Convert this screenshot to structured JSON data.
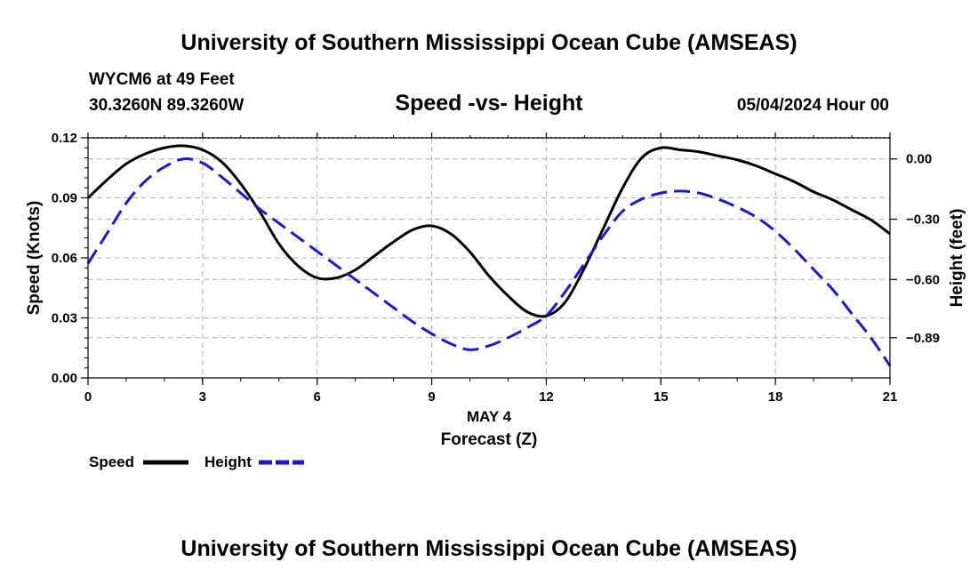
{
  "header": {
    "title": "University of Southern Mississippi Ocean Cube (AMSEAS)",
    "station": "WYCM6 at 49 Feet",
    "coords": "30.3260N  89.3260W",
    "subtitle": "Speed -vs- Height",
    "datetime": "05/04/2024 Hour 00"
  },
  "footer": {
    "title": "University of Southern Mississippi Ocean Cube (AMSEAS)"
  },
  "legend": {
    "speed_label": "Speed",
    "height_label": "Height"
  },
  "colors": {
    "speed": "#000000",
    "height": "#1a1acc",
    "grid": "#b0b0b0"
  },
  "chart_data": {
    "type": "line",
    "title": "Speed -vs- Height",
    "xlabel": "Forecast (Z)",
    "xlabel_date": "MAY 4",
    "ylabel": "Speed (Knots)",
    "y2label": "Height (feet)",
    "xlim": [
      0,
      21
    ],
    "ylim": [
      0,
      0.12
    ],
    "y2lim": [
      -1.09,
      0.105
    ],
    "x_ticks": [
      0,
      3,
      6,
      9,
      12,
      15,
      18,
      21
    ],
    "x_tick_labels": [
      "0",
      "3",
      "6",
      "9",
      "12",
      "15",
      "18",
      "21"
    ],
    "y_ticks": [
      0,
      0.03,
      0.06,
      0.09,
      0.12
    ],
    "y_tick_labels": [
      "0.00",
      "0.03",
      "0.06",
      "0.09",
      "0.12"
    ],
    "y2_ticks": [
      0.0,
      -0.3,
      -0.6,
      -0.89
    ],
    "y2_tick_labels": [
      "0.00",
      "−0.30",
      "−0.60",
      "−0.89"
    ],
    "grid": true,
    "series": [
      {
        "name": "Speed",
        "axis": "left",
        "style": "solid",
        "x": [
          0,
          0.5,
          1,
          1.5,
          2,
          2.5,
          3,
          3.5,
          4,
          4.5,
          5,
          5.5,
          6,
          6.5,
          7,
          7.5,
          8,
          8.5,
          9,
          9.5,
          10,
          10.5,
          11,
          11.5,
          12,
          12.5,
          13,
          13.5,
          14,
          14.5,
          15,
          15.5,
          16,
          16.5,
          17,
          17.5,
          18,
          18.5,
          19,
          19.5,
          20,
          20.5,
          21
        ],
        "values": [
          0.09,
          0.099,
          0.107,
          0.112,
          0.115,
          0.116,
          0.114,
          0.108,
          0.097,
          0.083,
          0.067,
          0.056,
          0.05,
          0.05,
          0.054,
          0.061,
          0.068,
          0.074,
          0.076,
          0.072,
          0.063,
          0.051,
          0.041,
          0.033,
          0.031,
          0.038,
          0.055,
          0.075,
          0.095,
          0.11,
          0.115,
          0.114,
          0.113,
          0.111,
          0.109,
          0.106,
          0.102,
          0.098,
          0.093,
          0.089,
          0.084,
          0.079,
          0.072
        ]
      },
      {
        "name": "Height",
        "axis": "right",
        "style": "dashed",
        "x": [
          0,
          0.5,
          1,
          1.5,
          2,
          2.5,
          3,
          3.5,
          4,
          4.5,
          5,
          5.5,
          6,
          6.5,
          7,
          7.5,
          8,
          8.5,
          9,
          9.5,
          10,
          10.5,
          11,
          11.5,
          12,
          12.5,
          13,
          13.5,
          14,
          14.5,
          15,
          15.5,
          16,
          16.5,
          17,
          17.5,
          18,
          18.5,
          19,
          19.5,
          20,
          20.5,
          21
        ],
        "values": [
          -0.52,
          -0.37,
          -0.22,
          -0.11,
          -0.04,
          0.0,
          -0.02,
          -0.09,
          -0.17,
          -0.25,
          -0.32,
          -0.39,
          -0.46,
          -0.53,
          -0.6,
          -0.67,
          -0.74,
          -0.81,
          -0.87,
          -0.92,
          -0.95,
          -0.93,
          -0.89,
          -0.84,
          -0.78,
          -0.66,
          -0.52,
          -0.38,
          -0.26,
          -0.2,
          -0.17,
          -0.16,
          -0.17,
          -0.2,
          -0.24,
          -0.29,
          -0.36,
          -0.45,
          -0.55,
          -0.65,
          -0.77,
          -0.89,
          -1.03
        ]
      }
    ]
  }
}
